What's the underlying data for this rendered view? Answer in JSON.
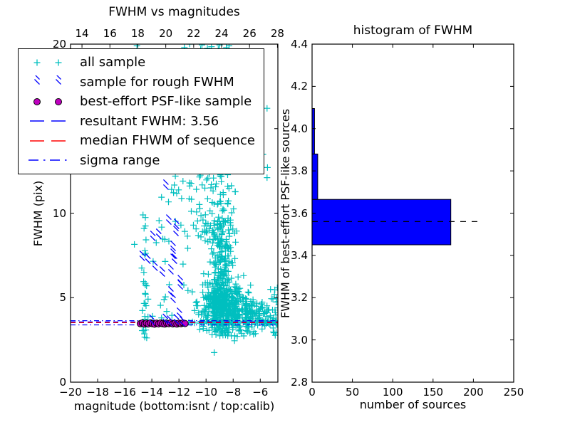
{
  "figure": {
    "left_plot": {
      "title": "FWHM vs magnitudes",
      "xlabel": "magnitude (bottom:isnt / top:calib)",
      "ylabel": "FWHM (pix)",
      "xtick_labels_bottom": [
        "−20",
        "−18",
        "−16",
        "−14",
        "−12",
        "−10",
        "−8",
        "−6"
      ],
      "xtick_labels_top": [
        "14",
        "16",
        "18",
        "20",
        "22",
        "24",
        "26",
        "28"
      ],
      "ytick_labels": [
        "0",
        "5",
        "10",
        "15",
        "20"
      ]
    },
    "right_plot": {
      "title": "histogram of FWHM",
      "xlabel": "number of sources",
      "ylabel": "FWHM of best-effort PSF-like sources",
      "xtick_labels": [
        "0",
        "50",
        "100",
        "150",
        "200",
        "250"
      ],
      "ytick_labels": [
        "2.8",
        "3.0",
        "3.2",
        "3.4",
        "3.6",
        "3.8",
        "4.0",
        "4.2",
        "4.4"
      ]
    },
    "legend": {
      "items": [
        {
          "label": "all sample",
          "marker": "plus",
          "color": "#00bfbf"
        },
        {
          "label": "sample for rough FWHM",
          "marker": "x",
          "color": "#0000ff"
        },
        {
          "label": "best-effort PSF-like sample",
          "marker": "circle",
          "color": "#bf00bf",
          "edge": "#000000"
        },
        {
          "label": "resultant FWHM: 3.56",
          "marker": "dashed",
          "color": "#0000ff"
        },
        {
          "label": "median FHWM of sequence",
          "marker": "dashed",
          "color": "#ff0000"
        },
        {
          "label": "sigma range",
          "marker": "dashdot",
          "color": "#0000ff"
        }
      ]
    }
  },
  "chart_data": [
    {
      "type": "scatter",
      "title": "FWHM vs magnitudes",
      "xlabel": "magnitude (bottom:isnt / top:calib)",
      "ylabel": "FWHM (pix)",
      "xlim": [
        -20,
        -4.7
      ],
      "xlim_top": [
        13.18,
        28.03
      ],
      "ylim": [
        0,
        20
      ],
      "xticks_bottom": [
        -20,
        -18,
        -16,
        -14,
        -12,
        -10,
        -8,
        -6
      ],
      "xticks_top": [
        14,
        16,
        18,
        20,
        22,
        24,
        26,
        28
      ],
      "yticks": [
        0,
        5,
        10,
        15,
        20
      ],
      "grid": false,
      "legend_position": "upper left",
      "series": [
        {
          "name": "all sample",
          "marker": "plus",
          "color": "#00bfbf",
          "points": [
            [
              -15.1,
              19.9
            ],
            [
              -11.6,
              19.8
            ],
            [
              -11.2,
              20.0
            ],
            [
              -10.4,
              19.7
            ],
            [
              -10.3,
              19.95
            ],
            [
              -9.9,
              19.75
            ],
            [
              -9.6,
              19.85
            ],
            [
              -9.1,
              19.7
            ],
            [
              -9.0,
              19.95
            ],
            [
              -8.5,
              19.8
            ],
            [
              -8.3,
              19.9
            ],
            [
              -9.4,
              1.75
            ],
            [
              -7.9,
              2.45
            ],
            [
              -5.5,
              12.1
            ]
          ],
          "clusters": [
            {
              "n": 26,
              "x": {
                "dist": "normal",
                "mean": -14.55,
                "sd": 0.1,
                "min": -14.8,
                "max": -14.3
              },
              "y": {
                "dist": "power",
                "min": 2.6,
                "max": 12.2,
                "exp": 1.8
              }
            },
            {
              "n": 30,
              "x": {
                "dist": "uniform",
                "min": -15.3,
                "max": -12.4
              },
              "y": {
                "dist": "power",
                "min": 3.4,
                "max": 12.5,
                "exp": 1.5
              }
            },
            {
              "n": 35,
              "x": {
                "dist": "uniform",
                "min": -12.4,
                "max": -9.9
              },
              "y": {
                "dist": "uniform",
                "min": 3.7,
                "max": 12.8
              }
            },
            {
              "n": 85,
              "x": {
                "dist": "normal",
                "mean": -9.2,
                "sd": 0.8,
                "min": -11.2,
                "max": -7.2
              },
              "y": {
                "dist": "uniform",
                "min": 8.3,
                "max": 12.8
              }
            },
            {
              "n": 240,
              "x": {
                "dist": "normal",
                "mean": -8.85,
                "sd": 0.5,
                "min": -10.3,
                "max": -7.4
              },
              "y": {
                "dist": "power",
                "min": 4.6,
                "max": 9.6,
                "exp": 1.7
              }
            },
            {
              "n": 420,
              "x": {
                "dist": "normal",
                "mean": -8.6,
                "sd": 0.85,
                "min": -10.9,
                "max": -6.4
              },
              "y": {
                "dist": "normal",
                "mean": 4.2,
                "sd": 0.75,
                "min": 2.7,
                "max": 6.7
              }
            },
            {
              "n": 130,
              "x": {
                "dist": "power",
                "min": -7.1,
                "max": -4.62,
                "exp": 1.5
              },
              "y": {
                "dist": "normal",
                "mean": 3.9,
                "sd": 0.6,
                "min": 2.5,
                "max": 5.7
              }
            },
            {
              "n": 45,
              "x": {
                "dist": "uniform",
                "min": -11.6,
                "max": -4.7
              },
              "y": {
                "dist": "normal",
                "mean": 3.55,
                "sd": 0.09,
                "min": 3.2,
                "max": 3.9
              }
            },
            {
              "n": 26,
              "x": {
                "dist": "uniform",
                "min": -12.6,
                "max": -5.4
              },
              "y": {
                "dist": "uniform",
                "min": 12.6,
                "max": 19.4
              }
            },
            {
              "n": 18,
              "x": {
                "dist": "normal",
                "mean": -8.7,
                "sd": 0.4,
                "min": -9.6,
                "max": -7.8
              },
              "y": {
                "dist": "uniform",
                "min": 12.8,
                "max": 19.6
              }
            }
          ]
        },
        {
          "name": "sample for rough FWHM",
          "marker": "x",
          "color": "#0000ff",
          "points": [
            [
              -12.96,
              11.54
            ],
            [
              -12.75,
              9.47
            ],
            [
              -12.17,
              9.22
            ],
            [
              -12.22,
              8.8
            ],
            [
              -13.92,
              8.51
            ],
            [
              -13.49,
              8.63
            ],
            [
              -14.71,
              7.33
            ],
            [
              -14.29,
              7.16
            ],
            [
              -12.43,
              7.92
            ],
            [
              -12.43,
              7.45
            ],
            [
              -12.33,
              7.16
            ],
            [
              -13.76,
              6.74
            ],
            [
              -13.23,
              6.4
            ],
            [
              -12.59,
              6.53
            ],
            [
              -11.9,
              5.89
            ],
            [
              -12.59,
              5.22
            ],
            [
              -12.43,
              4.84
            ],
            [
              -11.96,
              3.96
            ],
            [
              -11.9,
              5.64
            ],
            [
              -11.75,
              3.45
            ],
            [
              -12.2,
              3.58
            ],
            [
              -13.0,
              3.6
            ],
            [
              -12.7,
              3.5
            ],
            [
              -14.0,
              3.55
            ]
          ]
        },
        {
          "name": "best-effort PSF-like sample",
          "marker": "circle",
          "color": "#bf00bf",
          "edge_color": "#000000",
          "points": [
            [
              -14.85,
              3.46
            ],
            [
              -14.7,
              3.5
            ],
            [
              -14.55,
              3.44
            ],
            [
              -14.4,
              3.49
            ],
            [
              -14.25,
              3.45
            ],
            [
              -14.1,
              3.51
            ],
            [
              -13.95,
              3.46
            ],
            [
              -13.8,
              3.43
            ],
            [
              -13.65,
              3.49
            ],
            [
              -13.5,
              3.45
            ],
            [
              -13.35,
              3.5
            ],
            [
              -13.2,
              3.46
            ],
            [
              -13.05,
              3.44
            ],
            [
              -12.9,
              3.49
            ],
            [
              -12.75,
              3.46
            ],
            [
              -12.6,
              3.51
            ],
            [
              -12.45,
              3.45
            ],
            [
              -12.3,
              3.48
            ],
            [
              -12.15,
              3.44
            ],
            [
              -12.0,
              3.49
            ],
            [
              -11.85,
              3.46
            ],
            [
              -11.7,
              3.5
            ],
            [
              -11.55,
              3.47
            ]
          ]
        }
      ],
      "hlines": [
        {
          "name": "resultant FWHM: 3.56",
          "y": [
            3.56
          ],
          "color": "#0000ff",
          "style": "dashed"
        },
        {
          "name": "median FHWM of sequence",
          "y": [
            3.52
          ],
          "color": "#ff0000",
          "style": "dashed"
        },
        {
          "name": "sigma range",
          "y": [
            3.39,
            3.64
          ],
          "color": "#0000ff",
          "style": "dashdot"
        }
      ]
    },
    {
      "type": "bar",
      "orientation": "horizontal",
      "title": "histogram of FWHM",
      "xlabel": "number of sources",
      "ylabel": "FWHM of best-effort PSF-like sources",
      "xlim": [
        0,
        250
      ],
      "ylim": [
        2.8,
        4.4
      ],
      "xticks": [
        0,
        50,
        100,
        150,
        200,
        250
      ],
      "yticks": [
        2.8,
        3.0,
        3.2,
        3.4,
        3.6,
        3.8,
        4.0,
        4.2,
        4.4
      ],
      "grid": false,
      "bar_color": "#0000ff",
      "bar_edge": "#000000",
      "bins": [
        {
          "y_range": [
            3.45,
            3.665
          ],
          "count": 172
        },
        {
          "y_range": [
            3.665,
            3.88
          ],
          "count": 7
        },
        {
          "y_range": [
            3.88,
            4.095
          ],
          "count": 3
        }
      ],
      "dashed_line": {
        "y": 3.56,
        "x_start": 0,
        "x_end": 207,
        "color": "#000000",
        "style": "dashed"
      }
    }
  ]
}
